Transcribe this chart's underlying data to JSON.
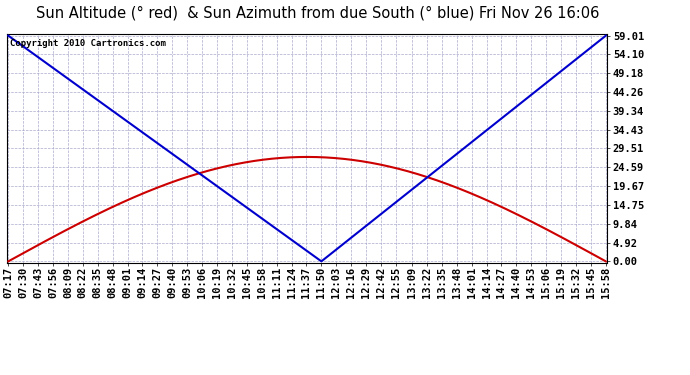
{
  "title": "Sun Altitude (° red)  & Sun Azimuth from due South (° blue) Fri Nov 26 16:06",
  "copyright_text": "Copyright 2010 Cartronics.com",
  "yticks": [
    0.0,
    4.92,
    9.84,
    14.75,
    19.67,
    24.59,
    29.51,
    34.43,
    39.34,
    44.26,
    49.18,
    54.1,
    59.01
  ],
  "ymax": 59.01,
  "ymin": 0.0,
  "background_color": "#ffffff",
  "plot_bg_color": "#ffffff",
  "grid_color": "#aaaacc",
  "blue_line_color": "#0000cc",
  "red_line_color": "#cc0000",
  "title_fontsize": 10.5,
  "tick_label_fontsize": 7.5,
  "x_tick_labels": [
    "07:17",
    "07:30",
    "07:43",
    "07:56",
    "08:09",
    "08:22",
    "08:35",
    "08:48",
    "09:01",
    "09:14",
    "09:27",
    "09:40",
    "09:53",
    "10:06",
    "10:19",
    "10:32",
    "10:45",
    "10:58",
    "11:11",
    "11:24",
    "11:37",
    "11:50",
    "12:03",
    "12:16",
    "12:29",
    "12:42",
    "12:55",
    "13:09",
    "13:22",
    "13:35",
    "13:48",
    "14:01",
    "14:14",
    "14:27",
    "14:40",
    "14:53",
    "15:06",
    "15:19",
    "15:32",
    "15:45",
    "15:58"
  ],
  "solar_noon": "11:37",
  "altitude_max": 27.3,
  "azimuth_max": 59.01,
  "azimuth_min_time": "11:50",
  "copyright_fontsize": 6.5
}
